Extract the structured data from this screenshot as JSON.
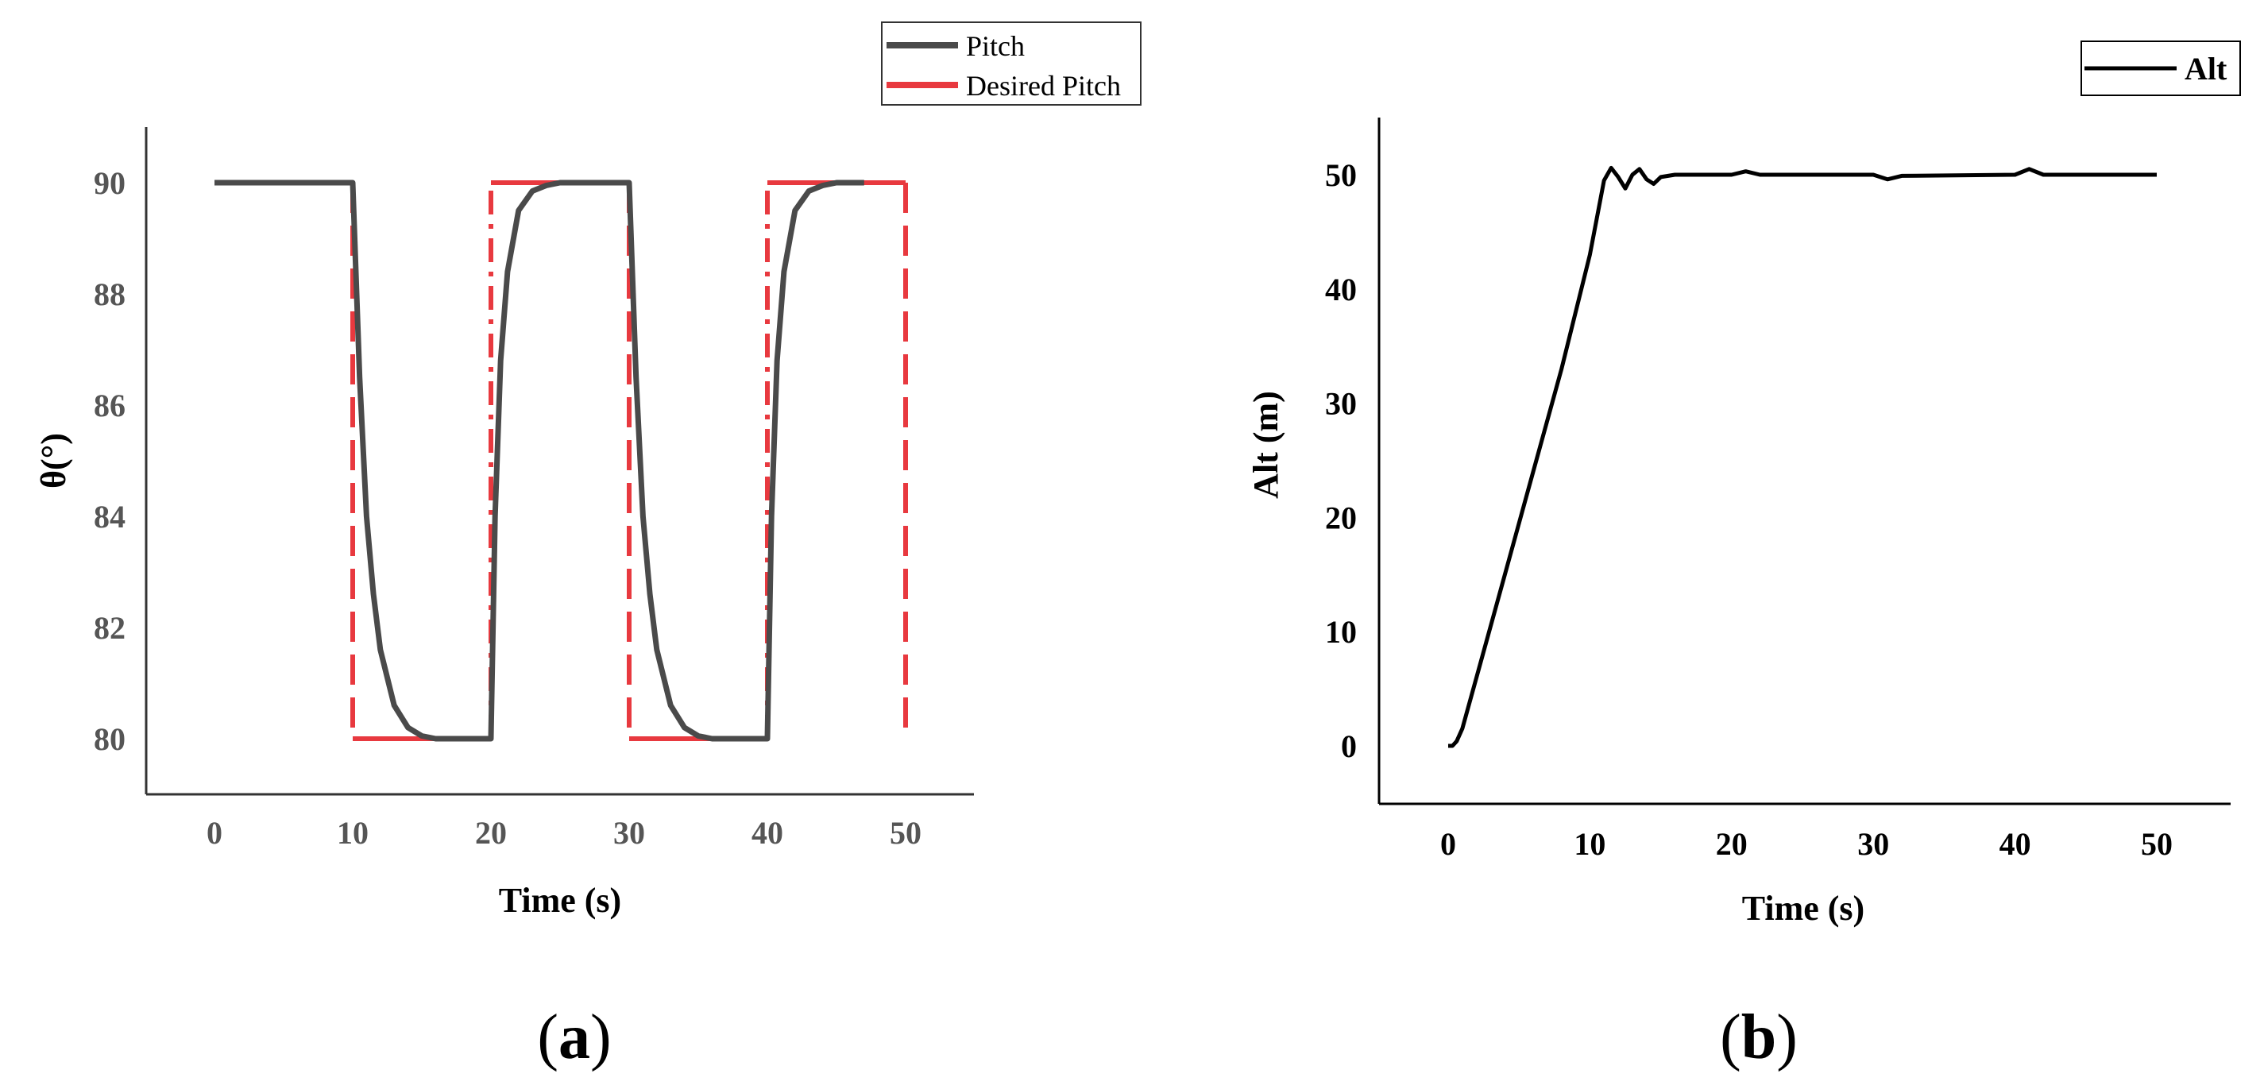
{
  "chart_data": [
    {
      "type": "line",
      "panel_label": "a",
      "xlabel": "Time (s)",
      "ylabel": "θ(°)",
      "xlim": [
        -5,
        55
      ],
      "ylim": [
        79,
        91
      ],
      "xticks": [
        0,
        10,
        20,
        30,
        40,
        50
      ],
      "yticks": [
        80,
        82,
        84,
        86,
        88,
        90
      ],
      "legend": {
        "placement": "top-right"
      },
      "colors": {
        "pitch": "#4a4a4a",
        "desired": "#e8393f"
      },
      "series": [
        {
          "name": "Pitch",
          "x": [
            0,
            10,
            10.5,
            11,
            11.5,
            12,
            13,
            14,
            15,
            16,
            20,
            20.3,
            20.7,
            21.2,
            22,
            23,
            24,
            25,
            27,
            30,
            30.5,
            31,
            31.5,
            32,
            33,
            34,
            35,
            36,
            40,
            40.3,
            40.7,
            41.2,
            42,
            43,
            44,
            45,
            47
          ],
          "y": [
            90,
            90,
            86.5,
            84.0,
            82.6,
            81.6,
            80.6,
            80.2,
            80.05,
            80,
            80,
            84.0,
            86.8,
            88.4,
            89.5,
            89.85,
            89.95,
            90,
            90,
            90,
            86.5,
            84.0,
            82.6,
            81.6,
            80.6,
            80.2,
            80.05,
            80,
            80,
            84.0,
            86.8,
            88.4,
            89.5,
            89.85,
            89.95,
            90,
            90
          ]
        },
        {
          "name": "Desired Pitch",
          "x": [
            0,
            10,
            10,
            20,
            20,
            30,
            30,
            40,
            40,
            50,
            50
          ],
          "y": [
            90,
            90,
            80,
            80,
            90,
            90,
            80,
            80,
            90,
            90,
            80
          ]
        }
      ]
    },
    {
      "type": "line",
      "panel_label": "b",
      "xlabel": "Time (s)",
      "ylabel": "Alt (m)",
      "xlim": [
        -5,
        55
      ],
      "ylim": [
        -5,
        55
      ],
      "xticks": [
        0,
        10,
        20,
        30,
        40,
        50
      ],
      "yticks": [
        0,
        10,
        20,
        30,
        40,
        50
      ],
      "legend": {
        "placement": "top-right"
      },
      "colors": {
        "alt": "#000000"
      },
      "series": [
        {
          "name": "Alt",
          "x": [
            0,
            0.3,
            0.6,
            1,
            2,
            4,
            6,
            8,
            10,
            11,
            11.5,
            12,
            12.5,
            13,
            13.5,
            14,
            14.5,
            15,
            16,
            20,
            21,
            22,
            30,
            31,
            32,
            40,
            41,
            42,
            50
          ],
          "y": [
            0,
            0,
            0.4,
            1.5,
            6,
            15,
            24,
            33,
            43,
            49.5,
            50.6,
            49.8,
            48.8,
            50.0,
            50.5,
            49.6,
            49.2,
            49.8,
            50,
            50,
            50.3,
            50,
            50,
            49.6,
            49.9,
            50,
            50.5,
            50,
            50
          ]
        }
      ]
    }
  ]
}
